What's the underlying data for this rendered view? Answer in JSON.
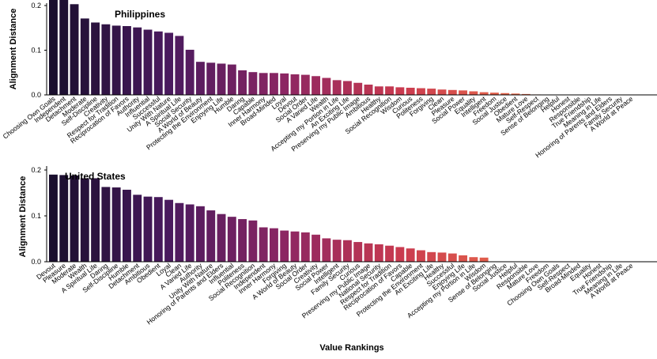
{
  "chart_data": [
    {
      "type": "bar",
      "title": "Philippines",
      "ylabel": "Alignment Distance",
      "xlabel": "",
      "ylim": [
        0,
        0.25
      ],
      "yticks": [
        0.0,
        0.1,
        0.2
      ],
      "categories": [
        "Choosing Own Goals",
        "Independent",
        "Detachment",
        "Moderate",
        "Self-Discipline",
        "Creativity",
        "Respect for Tradition",
        "Reciprocation of Favors",
        "Authority",
        "Influential",
        "Successful",
        "Unity With Nature",
        "A Spiritual Life",
        "Social Security",
        "A World of Beauty",
        "Protecting the Environment",
        "Enjoying Life",
        "Humble",
        "Daring",
        "Capable",
        "Inner Harmony",
        "Broad-Minded",
        "Loyal",
        "Devout",
        "Social Order",
        "A Varied Life",
        "Wealth",
        "Accepting my Portion in Life",
        "An Exciting Life",
        "Preserving my Public Image",
        "Ambitious",
        "Healthy",
        "Social Recognition",
        "Wisdom",
        "Curious",
        "Politeness",
        "Forgiving",
        "Clean",
        "Pleasure",
        "Social Power",
        "Equality",
        "Intelligent",
        "Freedom",
        "Social Justice",
        "Obedient",
        "Mature Love",
        "Self-Respect",
        "Sense of Belonging",
        "Helpful",
        "Honest",
        "Responsible",
        "True Friendship",
        "Meaning in Life",
        "Honoring of Parents and Elders",
        "Family Security",
        "A World at Peace"
      ],
      "values": [
        0.26,
        0.222,
        0.203,
        0.171,
        0.162,
        0.158,
        0.155,
        0.154,
        0.151,
        0.146,
        0.142,
        0.139,
        0.132,
        0.101,
        0.074,
        0.072,
        0.07,
        0.068,
        0.055,
        0.051,
        0.049,
        0.049,
        0.048,
        0.046,
        0.045,
        0.042,
        0.038,
        0.033,
        0.031,
        0.027,
        0.023,
        0.019,
        0.019,
        0.017,
        0.016,
        0.015,
        0.014,
        0.012,
        0.011,
        0.01,
        0.008,
        0.006,
        0.005,
        0.004,
        0.003,
        0.002,
        0.001,
        0.0,
        0.0,
        0.0,
        0.0,
        0.0,
        0.0,
        0.0,
        0.0,
        0.0
      ],
      "grid": false,
      "colormap": [
        "#1a0f2e",
        "#4a1a5e",
        "#8c2663",
        "#c93a4f",
        "#e8694a",
        "#f3a488"
      ]
    },
    {
      "type": "bar",
      "title": "United States",
      "ylabel": "Alignment Distance",
      "xlabel": "Value Rankings",
      "ylim": [
        0,
        0.25
      ],
      "yticks": [
        0.0,
        0.1,
        0.2
      ],
      "categories": [
        "Devout",
        "Pleasure",
        "Moderate",
        "Wealth",
        "A Spiritual Life",
        "Daring",
        "Self-Discipline",
        "Humble",
        "Detachment",
        "Ambitious",
        "Obedient",
        "Loyal",
        "Clean",
        "A Varied Life",
        "Authority",
        "Unity With Nature",
        "Honoring of Parents and Elders",
        "Influential",
        "Politeness",
        "Social Recognition",
        "Independent",
        "Inner Harmony",
        "Forgiving",
        "A World of Beauty",
        "Social Order",
        "Creativity",
        "Social Power",
        "Intelligent",
        "Family Security",
        "Curious",
        "Preserving my Public Image",
        "National Security",
        "Respect for Tradition",
        "Reciprocation of Favors",
        "Capable",
        "Protecting the Environment",
        "An Exciting Life",
        "Healthy",
        "Successful",
        "Enjoying Life",
        "Accepting my Portion in Life",
        "Wisdom",
        "Sense of Belonging",
        "Social Justice",
        "Helpful",
        "Responsible",
        "Mature Love",
        "Freedom",
        "Choosing Own Goals",
        "Self-Respect",
        "Broad-Minded",
        "Equality",
        "Honest",
        "True Friendship",
        "Meaning in Life",
        "A World at Peace"
      ],
      "values": [
        0.19,
        0.189,
        0.188,
        0.182,
        0.182,
        0.163,
        0.162,
        0.157,
        0.146,
        0.142,
        0.141,
        0.135,
        0.128,
        0.125,
        0.121,
        0.112,
        0.104,
        0.098,
        0.093,
        0.09,
        0.075,
        0.073,
        0.068,
        0.066,
        0.064,
        0.059,
        0.051,
        0.048,
        0.047,
        0.043,
        0.04,
        0.038,
        0.035,
        0.032,
        0.029,
        0.025,
        0.021,
        0.02,
        0.018,
        0.014,
        0.01,
        0.009,
        0.0,
        0.0,
        0.0,
        0.0,
        0.0,
        0.0,
        0.0,
        0.0,
        0.0,
        0.0,
        0.0,
        0.0,
        0.0,
        0.0
      ],
      "grid": false,
      "colormap": [
        "#1a0f2e",
        "#4a1a5e",
        "#8c2663",
        "#c93a4f",
        "#e8694a",
        "#f3a488"
      ]
    }
  ]
}
